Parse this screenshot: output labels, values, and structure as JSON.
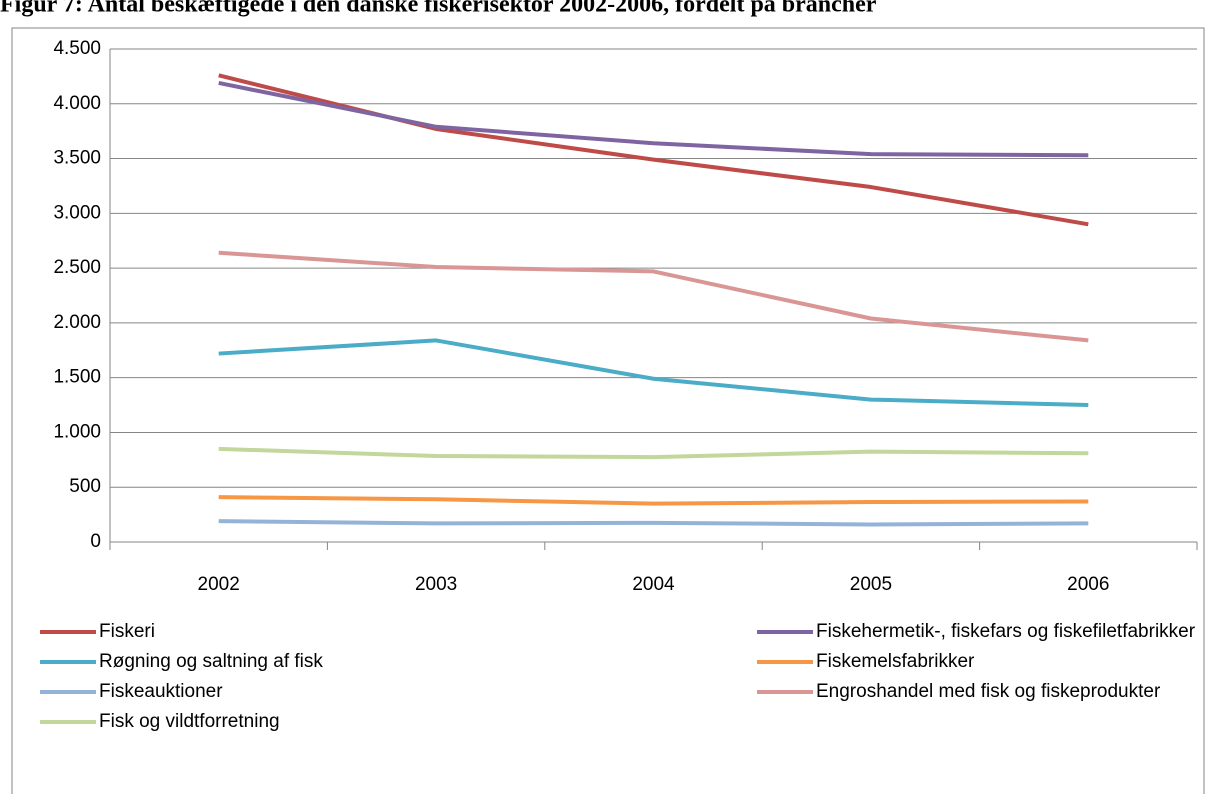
{
  "chart_data": {
    "type": "line",
    "title": "Figur 7: Antal beskæftigede i den danske fiskerisektor 2002-2006, fordelt på brancher",
    "categories": [
      "2002",
      "2003",
      "2004",
      "2005",
      "2006"
    ],
    "series": [
      {
        "name": "Fiskeri",
        "color": "#be4b48",
        "values": [
          4260,
          3770,
          3490,
          3240,
          2900
        ]
      },
      {
        "name": "Fiskehermetik-, fiskefars og fiskefiletfabrikker",
        "color": "#7f64a2",
        "values": [
          4190,
          3790,
          3640,
          3540,
          3530
        ]
      },
      {
        "name": "Røgning og saltning af fisk",
        "color": "#4aacc6",
        "values": [
          1720,
          1840,
          1490,
          1300,
          1250
        ]
      },
      {
        "name": "Fiskemelsfabrikker",
        "color": "#f79646",
        "values": [
          410,
          390,
          350,
          365,
          370
        ]
      },
      {
        "name": "Fiskeauktioner",
        "color": "#95b3d7",
        "values": [
          190,
          170,
          175,
          160,
          170
        ]
      },
      {
        "name": "Engroshandel med fisk og fiskeprodukter",
        "color": "#d99694",
        "values": [
          2640,
          2510,
          2470,
          2040,
          1840
        ]
      },
      {
        "name": "Fisk og vildtforretning",
        "color": "#c3d69b",
        "values": [
          850,
          785,
          775,
          825,
          810
        ]
      }
    ],
    "ylim": [
      0,
      4500
    ],
    "yticks": [
      0,
      500,
      {
        "value": 1000,
        "label": "1.000"
      },
      {
        "value": 1500,
        "label": "1.500"
      },
      {
        "value": 2000,
        "label": "2.000"
      },
      {
        "value": 2500,
        "label": "2.500"
      },
      {
        "value": 3000,
        "label": "3.000"
      },
      {
        "value": 3500,
        "label": "3.500"
      },
      {
        "value": 4000,
        "label": "4.000"
      },
      {
        "value": 4500,
        "label": "4.500"
      }
    ],
    "grid": true
  }
}
